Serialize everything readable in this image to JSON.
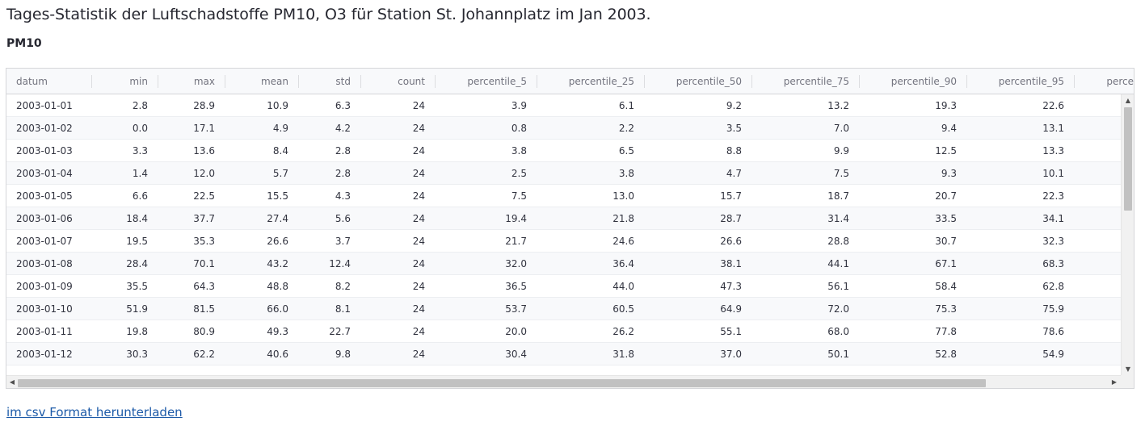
{
  "page": {
    "title": "Tages-Statistik der Luftschadstoffe PM10, O3 für Station St. Johannplatz im Jan 2003.",
    "section_title": "PM10",
    "download_link": "im csv Format herunterladen"
  },
  "table": {
    "columns": [
      "datum",
      "min",
      "max",
      "mean",
      "std",
      "count",
      "percentile_5",
      "percentile_25",
      "percentile_50",
      "percentile_75",
      "percentile_90",
      "percentile_95",
      "perce"
    ],
    "rows": [
      [
        "2003-01-01",
        "2.8",
        "28.9",
        "10.9",
        "6.3",
        "24",
        "3.9",
        "6.1",
        "9.2",
        "13.2",
        "19.3",
        "22.6"
      ],
      [
        "2003-01-02",
        "0.0",
        "17.1",
        "4.9",
        "4.2",
        "24",
        "0.8",
        "2.2",
        "3.5",
        "7.0",
        "9.4",
        "13.1"
      ],
      [
        "2003-01-03",
        "3.3",
        "13.6",
        "8.4",
        "2.8",
        "24",
        "3.8",
        "6.5",
        "8.8",
        "9.9",
        "12.5",
        "13.3"
      ],
      [
        "2003-01-04",
        "1.4",
        "12.0",
        "5.7",
        "2.8",
        "24",
        "2.5",
        "3.8",
        "4.7",
        "7.5",
        "9.3",
        "10.1"
      ],
      [
        "2003-01-05",
        "6.6",
        "22.5",
        "15.5",
        "4.3",
        "24",
        "7.5",
        "13.0",
        "15.7",
        "18.7",
        "20.7",
        "22.3"
      ],
      [
        "2003-01-06",
        "18.4",
        "37.7",
        "27.4",
        "5.6",
        "24",
        "19.4",
        "21.8",
        "28.7",
        "31.4",
        "33.5",
        "34.1"
      ],
      [
        "2003-01-07",
        "19.5",
        "35.3",
        "26.6",
        "3.7",
        "24",
        "21.7",
        "24.6",
        "26.6",
        "28.8",
        "30.7",
        "32.3"
      ],
      [
        "2003-01-08",
        "28.4",
        "70.1",
        "43.2",
        "12.4",
        "24",
        "32.0",
        "36.4",
        "38.1",
        "44.1",
        "67.1",
        "68.3"
      ],
      [
        "2003-01-09",
        "35.5",
        "64.3",
        "48.8",
        "8.2",
        "24",
        "36.5",
        "44.0",
        "47.3",
        "56.1",
        "58.4",
        "62.8"
      ],
      [
        "2003-01-10",
        "51.9",
        "81.5",
        "66.0",
        "8.1",
        "24",
        "53.7",
        "60.5",
        "64.9",
        "72.0",
        "75.3",
        "75.9"
      ],
      [
        "2003-01-11",
        "19.8",
        "80.9",
        "49.3",
        "22.7",
        "24",
        "20.0",
        "26.2",
        "55.1",
        "68.0",
        "77.8",
        "78.6"
      ],
      [
        "2003-01-12",
        "30.3",
        "62.2",
        "40.6",
        "9.8",
        "24",
        "30.4",
        "31.8",
        "37.0",
        "50.1",
        "52.8",
        "54.9"
      ]
    ]
  },
  "scrollbar": {
    "up_arrow": "▲",
    "down_arrow": "▼",
    "left_arrow": "◀",
    "right_arrow": "▶"
  }
}
